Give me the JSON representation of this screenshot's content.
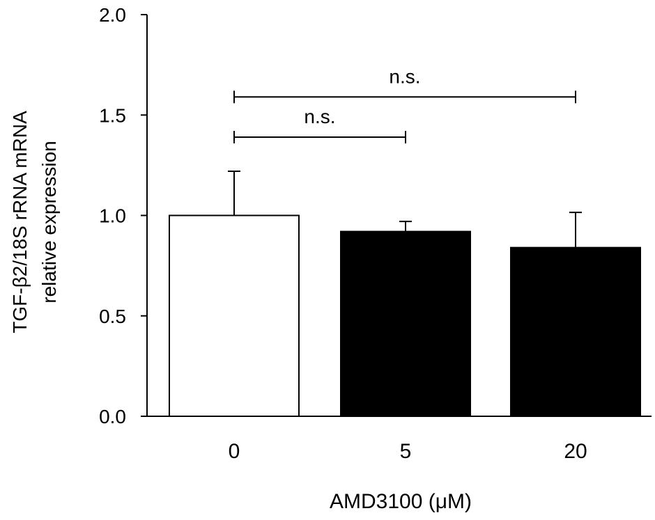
{
  "chart_data": {
    "type": "bar",
    "categories": [
      "0",
      "5",
      "20"
    ],
    "values": [
      1.0,
      0.92,
      0.84
    ],
    "error_bars": [
      0.22,
      0.05,
      0.175
    ],
    "bar_colors": [
      "#ffffff",
      "#000000",
      "#000000"
    ],
    "xlabel": "AMD3100 (μM)",
    "ylabel_lines": [
      "TGF-β2/18S rRNA  mRNA",
      "relative expression"
    ],
    "ylim": [
      0,
      2.0
    ],
    "yticks": [
      "0.0",
      "0.5",
      "1.0",
      "1.5",
      "2.0"
    ],
    "ytick_values": [
      0,
      0.5,
      1.0,
      1.5,
      2.0
    ],
    "grid": false,
    "significance": [
      {
        "from": 0,
        "to": 1,
        "level": 1.39,
        "label": "n.s."
      },
      {
        "from": 0,
        "to": 2,
        "level": 1.59,
        "label": "n.s."
      }
    ]
  }
}
